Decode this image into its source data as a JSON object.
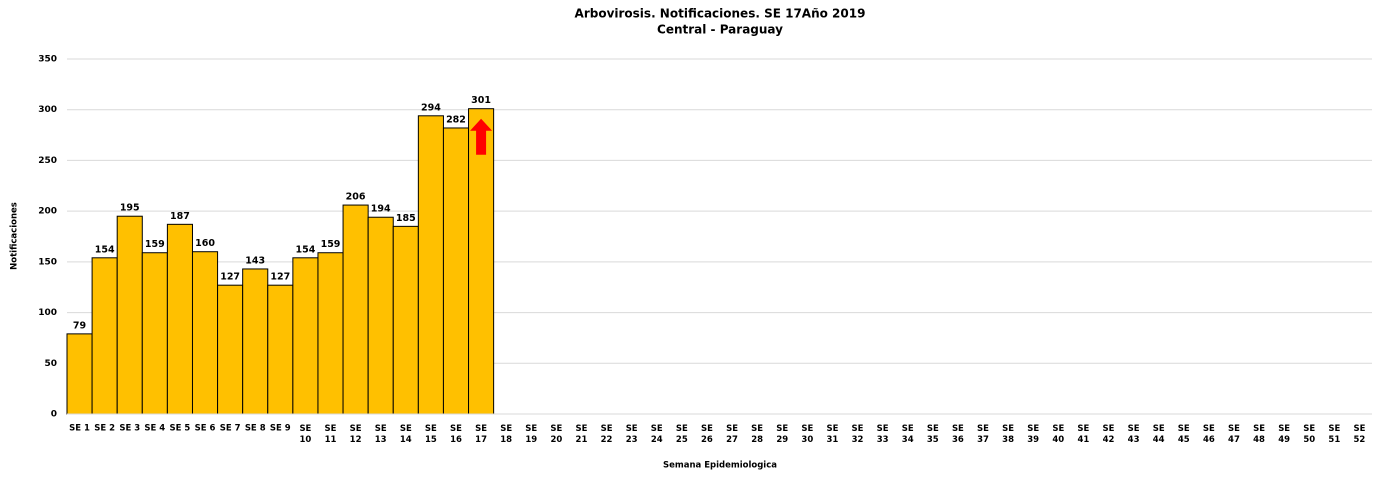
{
  "chart_data": {
    "type": "bar",
    "title": "Arbovirosis. Notificaciones. SE 17Año 2019",
    "subtitle": "Central - Paraguay",
    "x_label": "Semana Epidemiologica",
    "y_label": "Notificaciones",
    "categories": [
      "SE 1",
      "SE 2",
      "SE 3",
      "SE 4",
      "SE 5",
      "SE 6",
      "SE 7",
      "SE 8",
      "SE 9",
      "SE 10",
      "SE 11",
      "SE 12",
      "SE 13",
      "SE 14",
      "SE 15",
      "SE 16",
      "SE 17",
      "SE 18",
      "SE 19",
      "SE 20",
      "SE 21",
      "SE 22",
      "SE 23",
      "SE 24",
      "SE 25",
      "SE 26",
      "SE 27",
      "SE 28",
      "SE 29",
      "SE 30",
      "SE 31",
      "SE 32",
      "SE 33",
      "SE 34",
      "SE 35",
      "SE 36",
      "SE 37",
      "SE 38",
      "SE 39",
      "SE 40",
      "SE 41",
      "SE 42",
      "SE 43",
      "SE 44",
      "SE 45",
      "SE 46",
      "SE 47",
      "SE 48",
      "SE 49",
      "SE 50",
      "SE 51",
      "SE 52"
    ],
    "values": [
      79,
      154,
      195,
      159,
      187,
      160,
      127,
      143,
      127,
      154,
      159,
      206,
      194,
      185,
      294,
      282,
      301,
      null,
      null,
      null,
      null,
      null,
      null,
      null,
      null,
      null,
      null,
      null,
      null,
      null,
      null,
      null,
      null,
      null,
      null,
      null,
      null,
      null,
      null,
      null,
      null,
      null,
      null,
      null,
      null,
      null,
      null,
      null,
      null,
      null,
      null,
      null
    ],
    "color": "#ffc000",
    "ylim": [
      0,
      350
    ],
    "yticks": [
      0,
      50,
      100,
      150,
      200,
      250,
      300,
      350
    ],
    "grid": true
  }
}
